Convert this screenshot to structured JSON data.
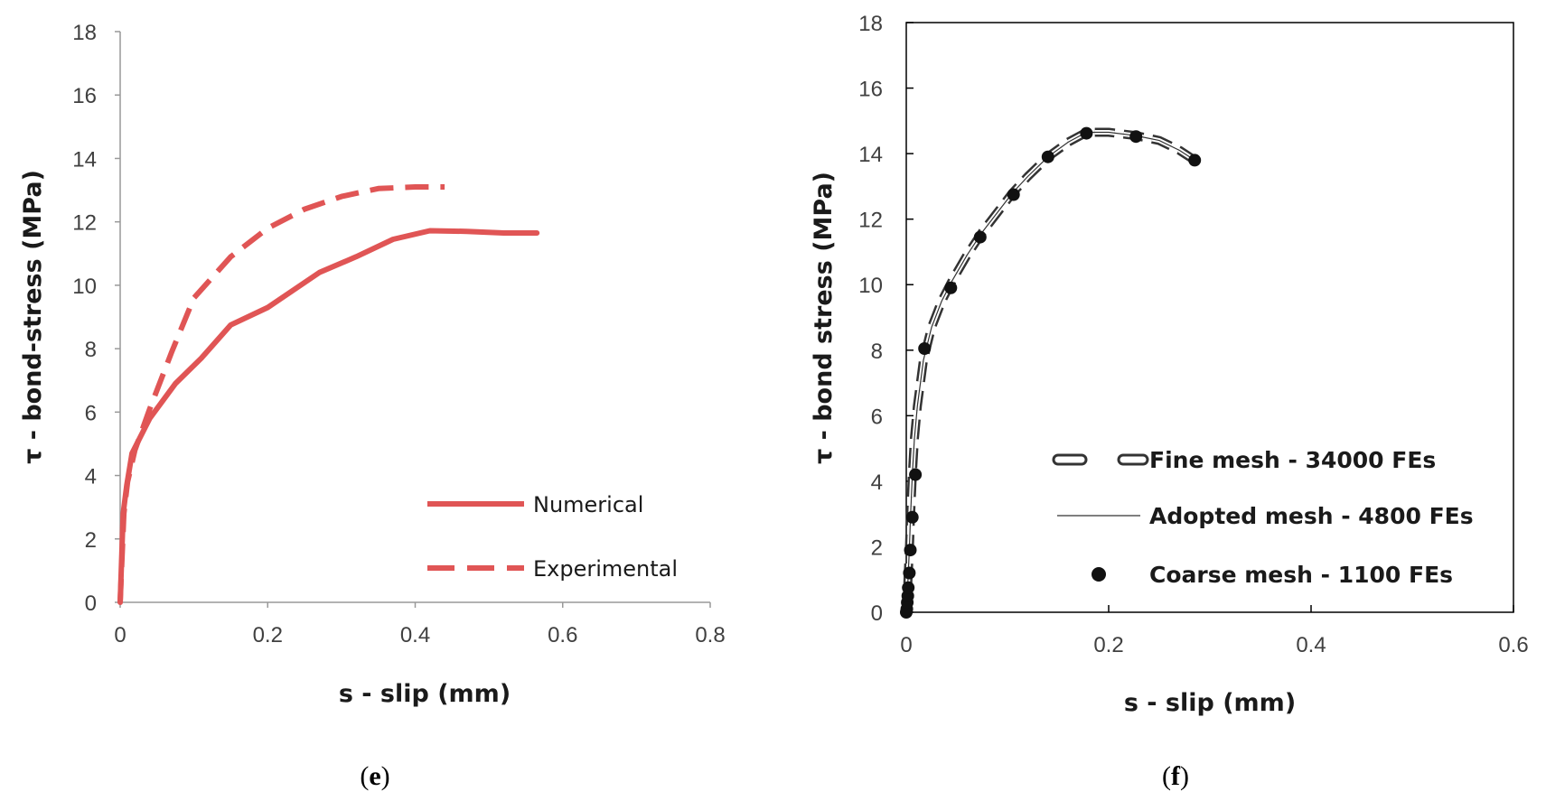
{
  "chart_data": [
    {
      "panel": "e",
      "type": "line",
      "xlabel": "s - slip (mm)",
      "ylabel": "τ - bond-stress (MPa)",
      "xlim": [
        0,
        0.8
      ],
      "ylim": [
        0,
        18
      ],
      "x_ticks": [
        "0",
        "0.2",
        "0.4",
        "0.6",
        "0.8"
      ],
      "y_ticks": [
        "0",
        "2",
        "4",
        "6",
        "8",
        "10",
        "12",
        "14",
        "16",
        "18"
      ],
      "grid": false,
      "legend_position": "bottom-right",
      "series": [
        {
          "name": "Numerical",
          "style": "solid",
          "color": "#E05555",
          "x": [
            0,
            0.004,
            0.009,
            0.016,
            0.04,
            0.075,
            0.11,
            0.15,
            0.2,
            0.27,
            0.32,
            0.37,
            0.42,
            0.47,
            0.52,
            0.565
          ],
          "y": [
            0,
            2.8,
            3.7,
            4.7,
            5.8,
            6.9,
            7.7,
            8.75,
            9.3,
            10.4,
            10.9,
            11.45,
            11.72,
            11.7,
            11.65,
            11.65
          ]
        },
        {
          "name": "Experimental",
          "style": "dashed",
          "color": "#E05555",
          "x": [
            0,
            0.005,
            0.01,
            0.02,
            0.04,
            0.07,
            0.1,
            0.15,
            0.2,
            0.25,
            0.3,
            0.35,
            0.4,
            0.44
          ],
          "y": [
            0,
            2.8,
            3.8,
            4.8,
            6.1,
            7.9,
            9.6,
            10.9,
            11.8,
            12.4,
            12.8,
            13.05,
            13.1,
            13.1
          ]
        }
      ]
    },
    {
      "panel": "f",
      "type": "line",
      "xlabel": "s - slip (mm)",
      "ylabel": "τ - bond stress (MPa)",
      "xlim": [
        0,
        0.6
      ],
      "ylim": [
        0,
        18
      ],
      "x_ticks": [
        "0",
        "0.2",
        "0.4",
        "0.6"
      ],
      "y_ticks": [
        "0",
        "2",
        "4",
        "6",
        "8",
        "10",
        "12",
        "14",
        "16",
        "18"
      ],
      "grid": false,
      "legend_position": "right",
      "series": [
        {
          "name": "Fine mesh - 34000 FEs",
          "style": "dashed-hollow",
          "color": "#333333",
          "x": [
            0,
            0.001,
            0.002,
            0.003,
            0.004,
            0.006,
            0.008,
            0.011,
            0.017,
            0.025,
            0.035,
            0.045,
            0.06,
            0.075,
            0.09,
            0.105,
            0.12,
            0.14,
            0.16,
            0.178,
            0.2,
            0.227,
            0.25,
            0.27,
            0.285
          ],
          "y": [
            0,
            0.5,
            1.2,
            1.9,
            2.8,
            4.2,
            5.3,
            6.3,
            7.7,
            8.7,
            9.5,
            10.1,
            10.9,
            11.6,
            12.2,
            12.8,
            13.3,
            13.9,
            14.35,
            14.65,
            14.65,
            14.55,
            14.4,
            14.1,
            13.8
          ]
        },
        {
          "name": "Adopted mesh - 4800 FEs",
          "style": "thin-solid",
          "color": "#333333",
          "x": [
            0,
            0.001,
            0.002,
            0.003,
            0.004,
            0.006,
            0.008,
            0.011,
            0.017,
            0.025,
            0.035,
            0.045,
            0.06,
            0.075,
            0.09,
            0.105,
            0.12,
            0.14,
            0.16,
            0.178,
            0.2,
            0.227,
            0.25,
            0.27,
            0.285
          ],
          "y": [
            0,
            0.5,
            1.2,
            1.9,
            2.8,
            4.2,
            5.3,
            6.3,
            7.7,
            8.7,
            9.5,
            10.1,
            10.9,
            11.6,
            12.2,
            12.8,
            13.3,
            13.9,
            14.35,
            14.65,
            14.65,
            14.55,
            14.4,
            14.1,
            13.8
          ]
        },
        {
          "name": "Coarse mesh - 1100 FEs",
          "style": "markers",
          "color": "#111111",
          "x": [
            0,
            0.0005,
            0.001,
            0.0015,
            0.002,
            0.003,
            0.004,
            0.006,
            0.009,
            0.018,
            0.044,
            0.073,
            0.106,
            0.14,
            0.178,
            0.227,
            0.285
          ],
          "y": [
            0,
            0.1,
            0.3,
            0.5,
            0.75,
            1.2,
            1.9,
            2.9,
            4.2,
            8.05,
            9.9,
            11.45,
            12.75,
            13.9,
            14.62,
            14.52,
            13.8
          ]
        }
      ]
    }
  ],
  "captions": [
    {
      "open": "(",
      "letter": "e",
      "close": ")"
    },
    {
      "open": "(",
      "letter": "f",
      "close": ")"
    }
  ]
}
